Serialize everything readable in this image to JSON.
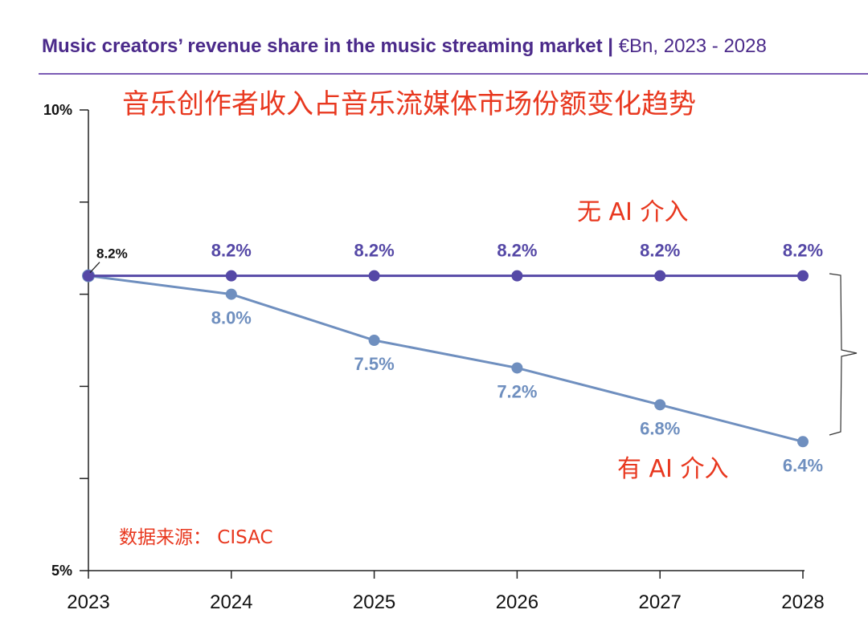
{
  "header": {
    "title": "Music creators’ revenue share in the music streaming market |",
    "subtitle": "€Bn, 2023 - 2028"
  },
  "annotations": {
    "chinese_title": "音乐创作者收入占音乐流媒体市场份额变化趋势",
    "no_ai_label": "无 AI 介入",
    "with_ai_label": "有 AI 介入",
    "source": "数据来源：  CISAC"
  },
  "colors": {
    "title": "#4b2a8a",
    "series_no_ai": "#5548a6",
    "series_with_ai": "#6f8fbf",
    "annotation": "#e8381f"
  },
  "chart_data": {
    "type": "line",
    "title": "Music creators’ revenue share in the music streaming market",
    "x": [
      "2023",
      "2024",
      "2025",
      "2026",
      "2027",
      "2028"
    ],
    "ylim": [
      5,
      10
    ],
    "y_tick_labels": [
      {
        "value": 10,
        "label": "10%"
      },
      {
        "value": 5,
        "label": "5%"
      }
    ],
    "y_minor_ticks": [
      9,
      8,
      7,
      6
    ],
    "series": [
      {
        "name": "无 AI 介入",
        "values": [
          8.2,
          8.2,
          8.2,
          8.2,
          8.2,
          8.2
        ],
        "labels": [
          "8.2%",
          "8.2%",
          "8.2%",
          "8.2%",
          "8.2%",
          "8.2%"
        ]
      },
      {
        "name": "有 AI 介入",
        "values": [
          8.2,
          8.0,
          7.5,
          7.2,
          6.8,
          6.4
        ],
        "labels": [
          "8.2%",
          "8.0%",
          "7.5%",
          "7.2%",
          "6.8%",
          "6.4%"
        ]
      }
    ]
  }
}
